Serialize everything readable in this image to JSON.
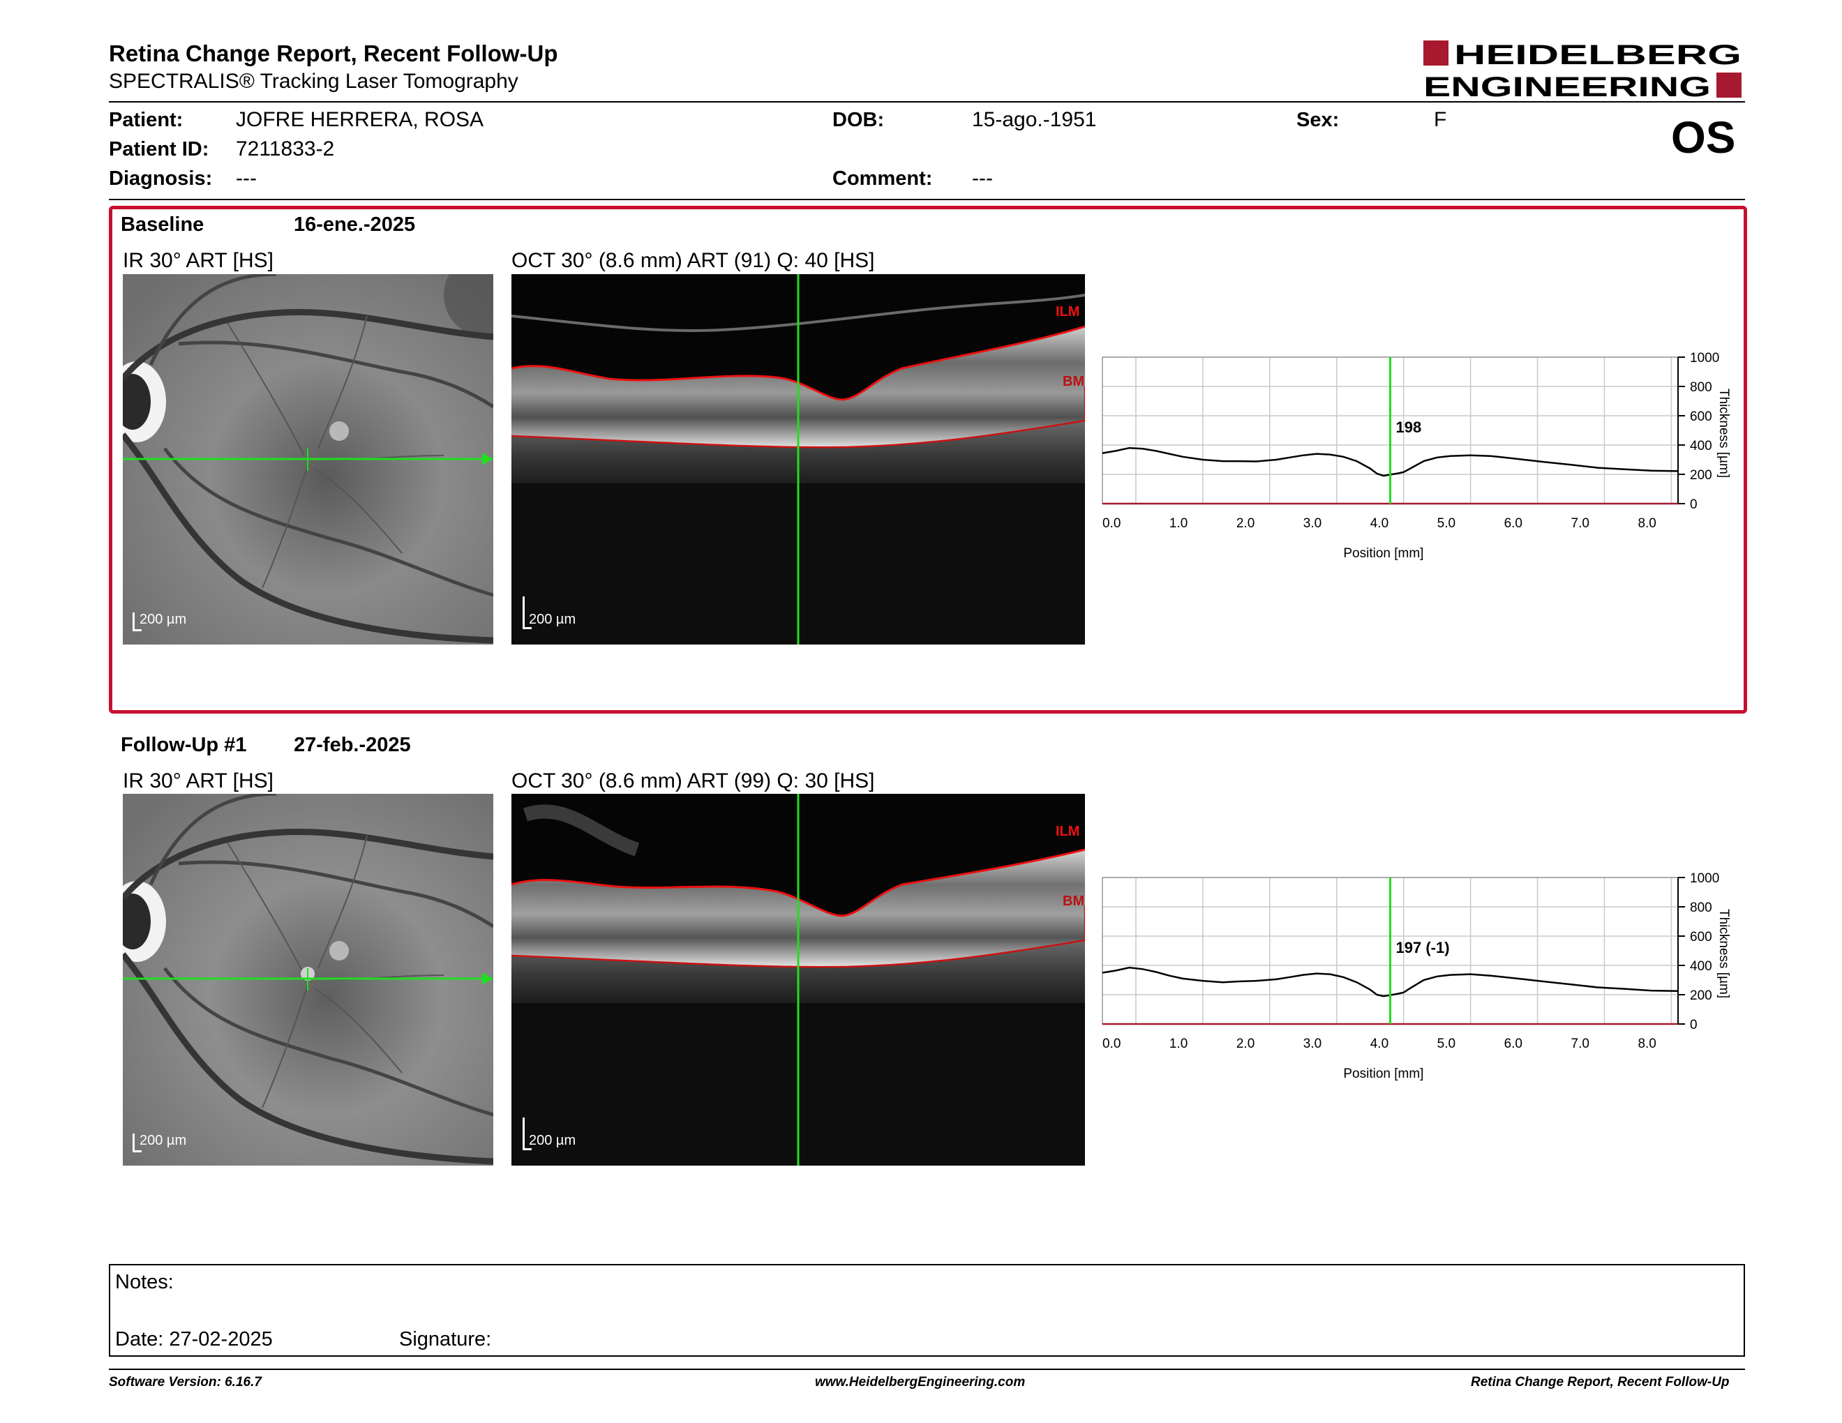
{
  "header": {
    "title": "Retina Change Report, Recent Follow-Up",
    "subtitle": "SPECTRALIS® Tracking Laser Tomography",
    "logo_line1": "HEIDELBERG",
    "logo_line2": "ENGINEERING",
    "eye": "OS"
  },
  "patient": {
    "patient_label": "Patient:",
    "patient_value": "JOFRE HERRERA, ROSA",
    "id_label": "Patient ID:",
    "id_value": "7211833-2",
    "diagnosis_label": "Diagnosis:",
    "diagnosis_value": "---",
    "dob_label": "DOB:",
    "dob_value": "15-ago.-1951",
    "comment_label": "Comment:",
    "comment_value": "---",
    "sex_label": "Sex:",
    "sex_value": "F"
  },
  "colors": {
    "accent_red": "#c8102e",
    "marker_green": "#22dd22",
    "logo_red": "#a6192e"
  },
  "baseline": {
    "label": "Baseline",
    "date": "16-ene.-2025",
    "ir_label": "IR 30° ART [HS]",
    "oct_label": "OCT 30° (8.6 mm) ART (91) Q: 40 [HS]",
    "ir_scale": "200 µm",
    "oct_scale": "200 µm",
    "ilm": "ILM",
    "bm": "BM"
  },
  "followup": {
    "label": "Follow-Up #1",
    "date": "27-feb.-2025",
    "ir_label": "IR 30° ART [HS]",
    "oct_label": "OCT 30° (8.6 mm) ART (99) Q: 30 [HS]",
    "ir_scale": "200 µm",
    "oct_scale": "200 µm",
    "ilm": "ILM",
    "bm": "BM"
  },
  "chart_data": [
    {
      "type": "line",
      "xlabel": "Position [mm]",
      "ylabel": "Thickness [µm]",
      "xlim": [
        0,
        8.6
      ],
      "ylim": [
        0,
        1000
      ],
      "x_ticks": [
        "0.0",
        "1.0",
        "2.0",
        "3.0",
        "4.0",
        "5.0",
        "6.0",
        "7.0",
        "8.0"
      ],
      "y_ticks": [
        "0",
        "200",
        "400",
        "600",
        "800",
        "1000"
      ],
      "grid": true,
      "marker_x": 4.3,
      "marker_label": "198",
      "series": [
        {
          "x": [
            0.0,
            0.2,
            0.4,
            0.6,
            0.8,
            1.0,
            1.2,
            1.5,
            1.8,
            2.0,
            2.3,
            2.6,
            2.8,
            3.0,
            3.2,
            3.4,
            3.6,
            3.8,
            4.0,
            4.1,
            4.2,
            4.3,
            4.4,
            4.5,
            4.6,
            4.8,
            5.0,
            5.2,
            5.5,
            5.8,
            6.0,
            6.3,
            6.6,
            7.0,
            7.4,
            7.8,
            8.2,
            8.6
          ],
          "values": [
            345,
            360,
            380,
            375,
            360,
            340,
            320,
            300,
            290,
            290,
            288,
            300,
            315,
            330,
            340,
            335,
            320,
            290,
            240,
            205,
            190,
            198,
            205,
            215,
            240,
            290,
            315,
            325,
            330,
            325,
            315,
            300,
            285,
            265,
            245,
            235,
            225,
            222
          ]
        }
      ]
    },
    {
      "type": "line",
      "xlabel": "Position [mm]",
      "ylabel": "Thickness [µm]",
      "xlim": [
        0,
        8.6
      ],
      "ylim": [
        0,
        1000
      ],
      "x_ticks": [
        "0.0",
        "1.0",
        "2.0",
        "3.0",
        "4.0",
        "5.0",
        "6.0",
        "7.0",
        "8.0"
      ],
      "y_ticks": [
        "0",
        "200",
        "400",
        "600",
        "800",
        "1000"
      ],
      "grid": true,
      "marker_x": 4.3,
      "marker_label": "197 (-1)",
      "series": [
        {
          "x": [
            0.0,
            0.2,
            0.4,
            0.6,
            0.8,
            1.0,
            1.2,
            1.5,
            1.8,
            2.0,
            2.3,
            2.6,
            2.8,
            3.0,
            3.2,
            3.4,
            3.6,
            3.8,
            4.0,
            4.1,
            4.2,
            4.3,
            4.4,
            4.5,
            4.6,
            4.8,
            5.0,
            5.2,
            5.5,
            5.8,
            6.0,
            6.3,
            6.6,
            7.0,
            7.4,
            7.8,
            8.2,
            8.6
          ],
          "values": [
            350,
            365,
            385,
            375,
            355,
            330,
            310,
            295,
            285,
            290,
            295,
            305,
            320,
            335,
            345,
            340,
            320,
            285,
            235,
            200,
            190,
            197,
            205,
            215,
            245,
            300,
            325,
            335,
            340,
            330,
            320,
            305,
            290,
            270,
            250,
            240,
            228,
            225
          ]
        }
      ]
    }
  ],
  "notes": {
    "notes_label": "Notes:",
    "date_label": "Date: 27-02-2025",
    "signature_label": "Signature:"
  },
  "footer": {
    "software": "Software Version: 6.16.7",
    "website": "www.HeidelbergEngineering.com",
    "report_name": "Retina Change Report, Recent Follow-Up"
  }
}
